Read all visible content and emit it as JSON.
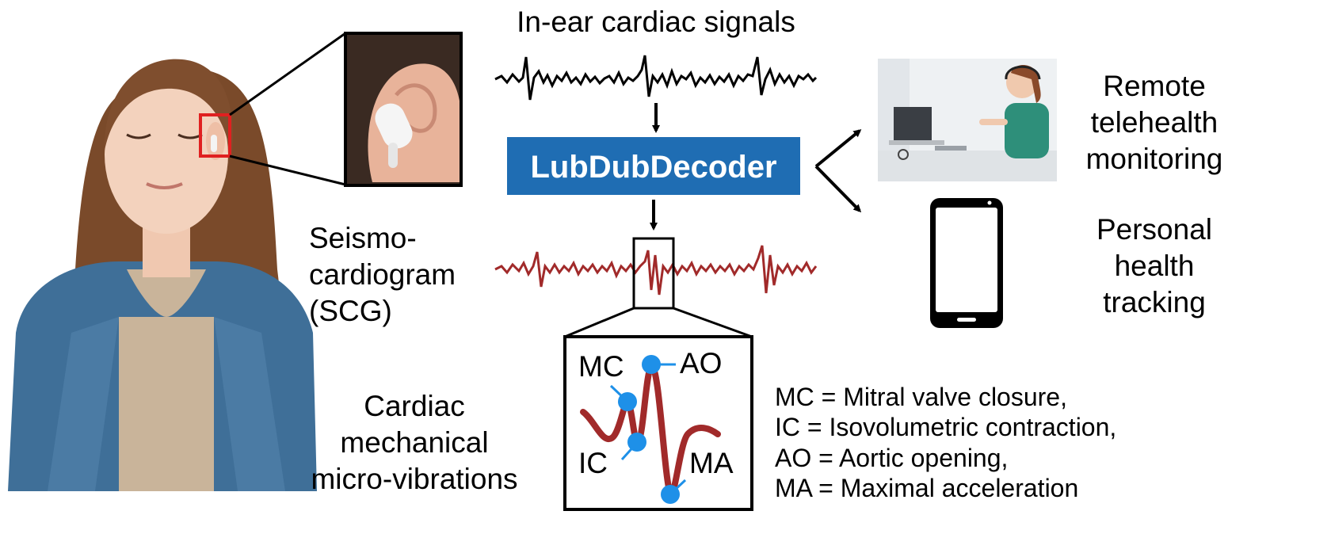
{
  "top_signal": {
    "title": "In-ear cardiac signals"
  },
  "decoder": {
    "label": "LubDubDecoder"
  },
  "scg": {
    "line1": "Seismo-",
    "line2": "cardiogram",
    "line3": "(SCG)"
  },
  "micro": {
    "line1": "Cardiac",
    "line2": "mechanical",
    "line3": "micro-vibrations"
  },
  "points": {
    "mc": "MC",
    "ao": "AO",
    "ic": "IC",
    "ma": "MA"
  },
  "legend": [
    "MC = Mitral valve closure,",
    "IC = Isovolumetric contraction,",
    "AO = Aortic opening,",
    "MA = Maximal acceleration"
  ],
  "outputs": {
    "remote": {
      "line1": "Remote",
      "line2": "telehealth",
      "line3": "monitoring"
    },
    "personal": {
      "line1": "Personal",
      "line2": "health",
      "line3": "tracking"
    }
  },
  "colors": {
    "decoder_fill": "#1f6db3",
    "scg_wave": "#a12a2a",
    "marker": "#1e90e8",
    "highlight_box": "#e02020"
  }
}
